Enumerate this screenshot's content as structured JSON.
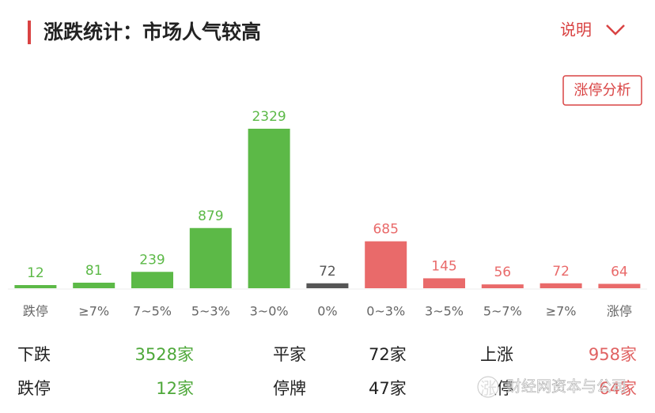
{
  "header": {
    "title": "涨跌统计：市场人气较高",
    "help": "说明",
    "button": "涨停分析"
  },
  "chart_data": {
    "type": "bar",
    "categories": [
      "跌停",
      "≥7%",
      "7~5%",
      "5~3%",
      "3~0%",
      "0%",
      "0~3%",
      "3~5%",
      "5~7%",
      "≥7%",
      "涨停"
    ],
    "values": [
      12,
      81,
      239,
      879,
      2329,
      72,
      685,
      145,
      56,
      72,
      64
    ],
    "colors": [
      "#5cb947",
      "#5cb947",
      "#5cb947",
      "#5cb947",
      "#5cb947",
      "#555555",
      "#e96a6a",
      "#e96a6a",
      "#e96a6a",
      "#e96a6a",
      "#e96a6a"
    ]
  },
  "stats": [
    [
      {
        "label": "下跌",
        "value": "3528家",
        "color": "#4ea83a"
      },
      {
        "label": "平家",
        "value": "72家",
        "color": "#222222"
      },
      {
        "label": "上涨",
        "value": "958家",
        "color": "#e06262"
      }
    ],
    [
      {
        "label": "跌停",
        "value": "12家",
        "color": "#4ea83a"
      },
      {
        "label": "停牌",
        "value": "47家",
        "color": "#222222"
      },
      {
        "label": "涨停",
        "value": "64家",
        "color": "#e06262"
      }
    ]
  ],
  "watermark": "财经网资本与公司"
}
